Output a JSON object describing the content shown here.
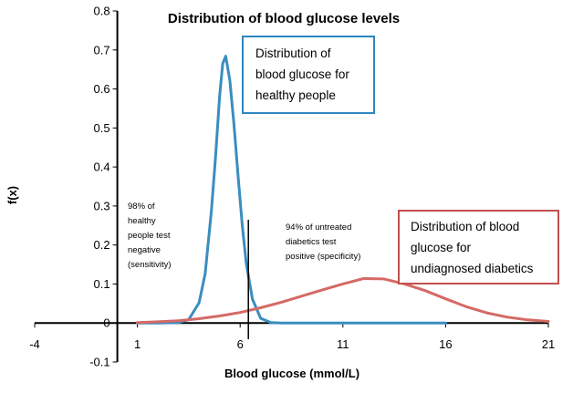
{
  "chart_data": {
    "type": "line",
    "title": "Distribution of blood glucose levels",
    "xlabel": "Blood glucose (mmol/L)",
    "ylabel": "f(x)",
    "xlim": [
      -4,
      21
    ],
    "ylim": [
      -0.1,
      0.8
    ],
    "x_ticks": [
      "-4",
      "1",
      "6",
      "11",
      "16",
      "21"
    ],
    "y_ticks": [
      "-0.1",
      "0",
      "0.1",
      "0.2",
      "0.3",
      "0.4",
      "0.5",
      "0.6",
      "0.7",
      "0.8"
    ],
    "grid": false,
    "series": [
      {
        "color": "#3a8dbf",
        "x": [
          1,
          2,
          3,
          3.5,
          4,
          4.3,
          4.6,
          4.8,
          5.0,
          5.15,
          5.3,
          5.5,
          5.7,
          5.9,
          6.1,
          6.3,
          6.6,
          7.0,
          7.5,
          8,
          9,
          10,
          12,
          14,
          16
        ],
        "y": [
          0,
          0,
          0.001,
          0.009,
          0.052,
          0.127,
          0.288,
          0.424,
          0.582,
          0.665,
          0.684,
          0.622,
          0.51,
          0.378,
          0.251,
          0.151,
          0.061,
          0.012,
          0.001,
          0,
          0,
          0,
          0,
          0,
          0
        ]
      },
      {
        "color": "#d46a66",
        "x": [
          1,
          2,
          3,
          4,
          5,
          6,
          7,
          8,
          9,
          10,
          11,
          12,
          13,
          14,
          15,
          16,
          17,
          18,
          19,
          20,
          21
        ],
        "y": [
          0.001,
          0.003,
          0.006,
          0.011,
          0.018,
          0.027,
          0.039,
          0.053,
          0.069,
          0.085,
          0.1,
          0.114,
          0.113,
          0.1,
          0.083,
          0.062,
          0.042,
          0.026,
          0.015,
          0.008,
          0.004
        ]
      }
    ],
    "threshold_x": 6.4,
    "annotations": {
      "left_note": [
        "98% of",
        "healthy",
        "people test",
        "negative",
        "(sensitivity)"
      ],
      "right_note": [
        "94% of untreated",
        "diabetics test",
        "positive (specificity)"
      ],
      "blue_box": [
        "Distribution of",
        "blood glucose for",
        "healthy people"
      ],
      "red_box": [
        "Distribution of blood",
        "glucose for",
        "undiagnosed diabetics"
      ]
    },
    "colors": {
      "healthy_line": "#3a8dbf",
      "diabetic_line": "#d46a66",
      "blue_box_border": "#2e86c1",
      "red_box_border": "#c0504d",
      "axis": "#000000"
    }
  }
}
